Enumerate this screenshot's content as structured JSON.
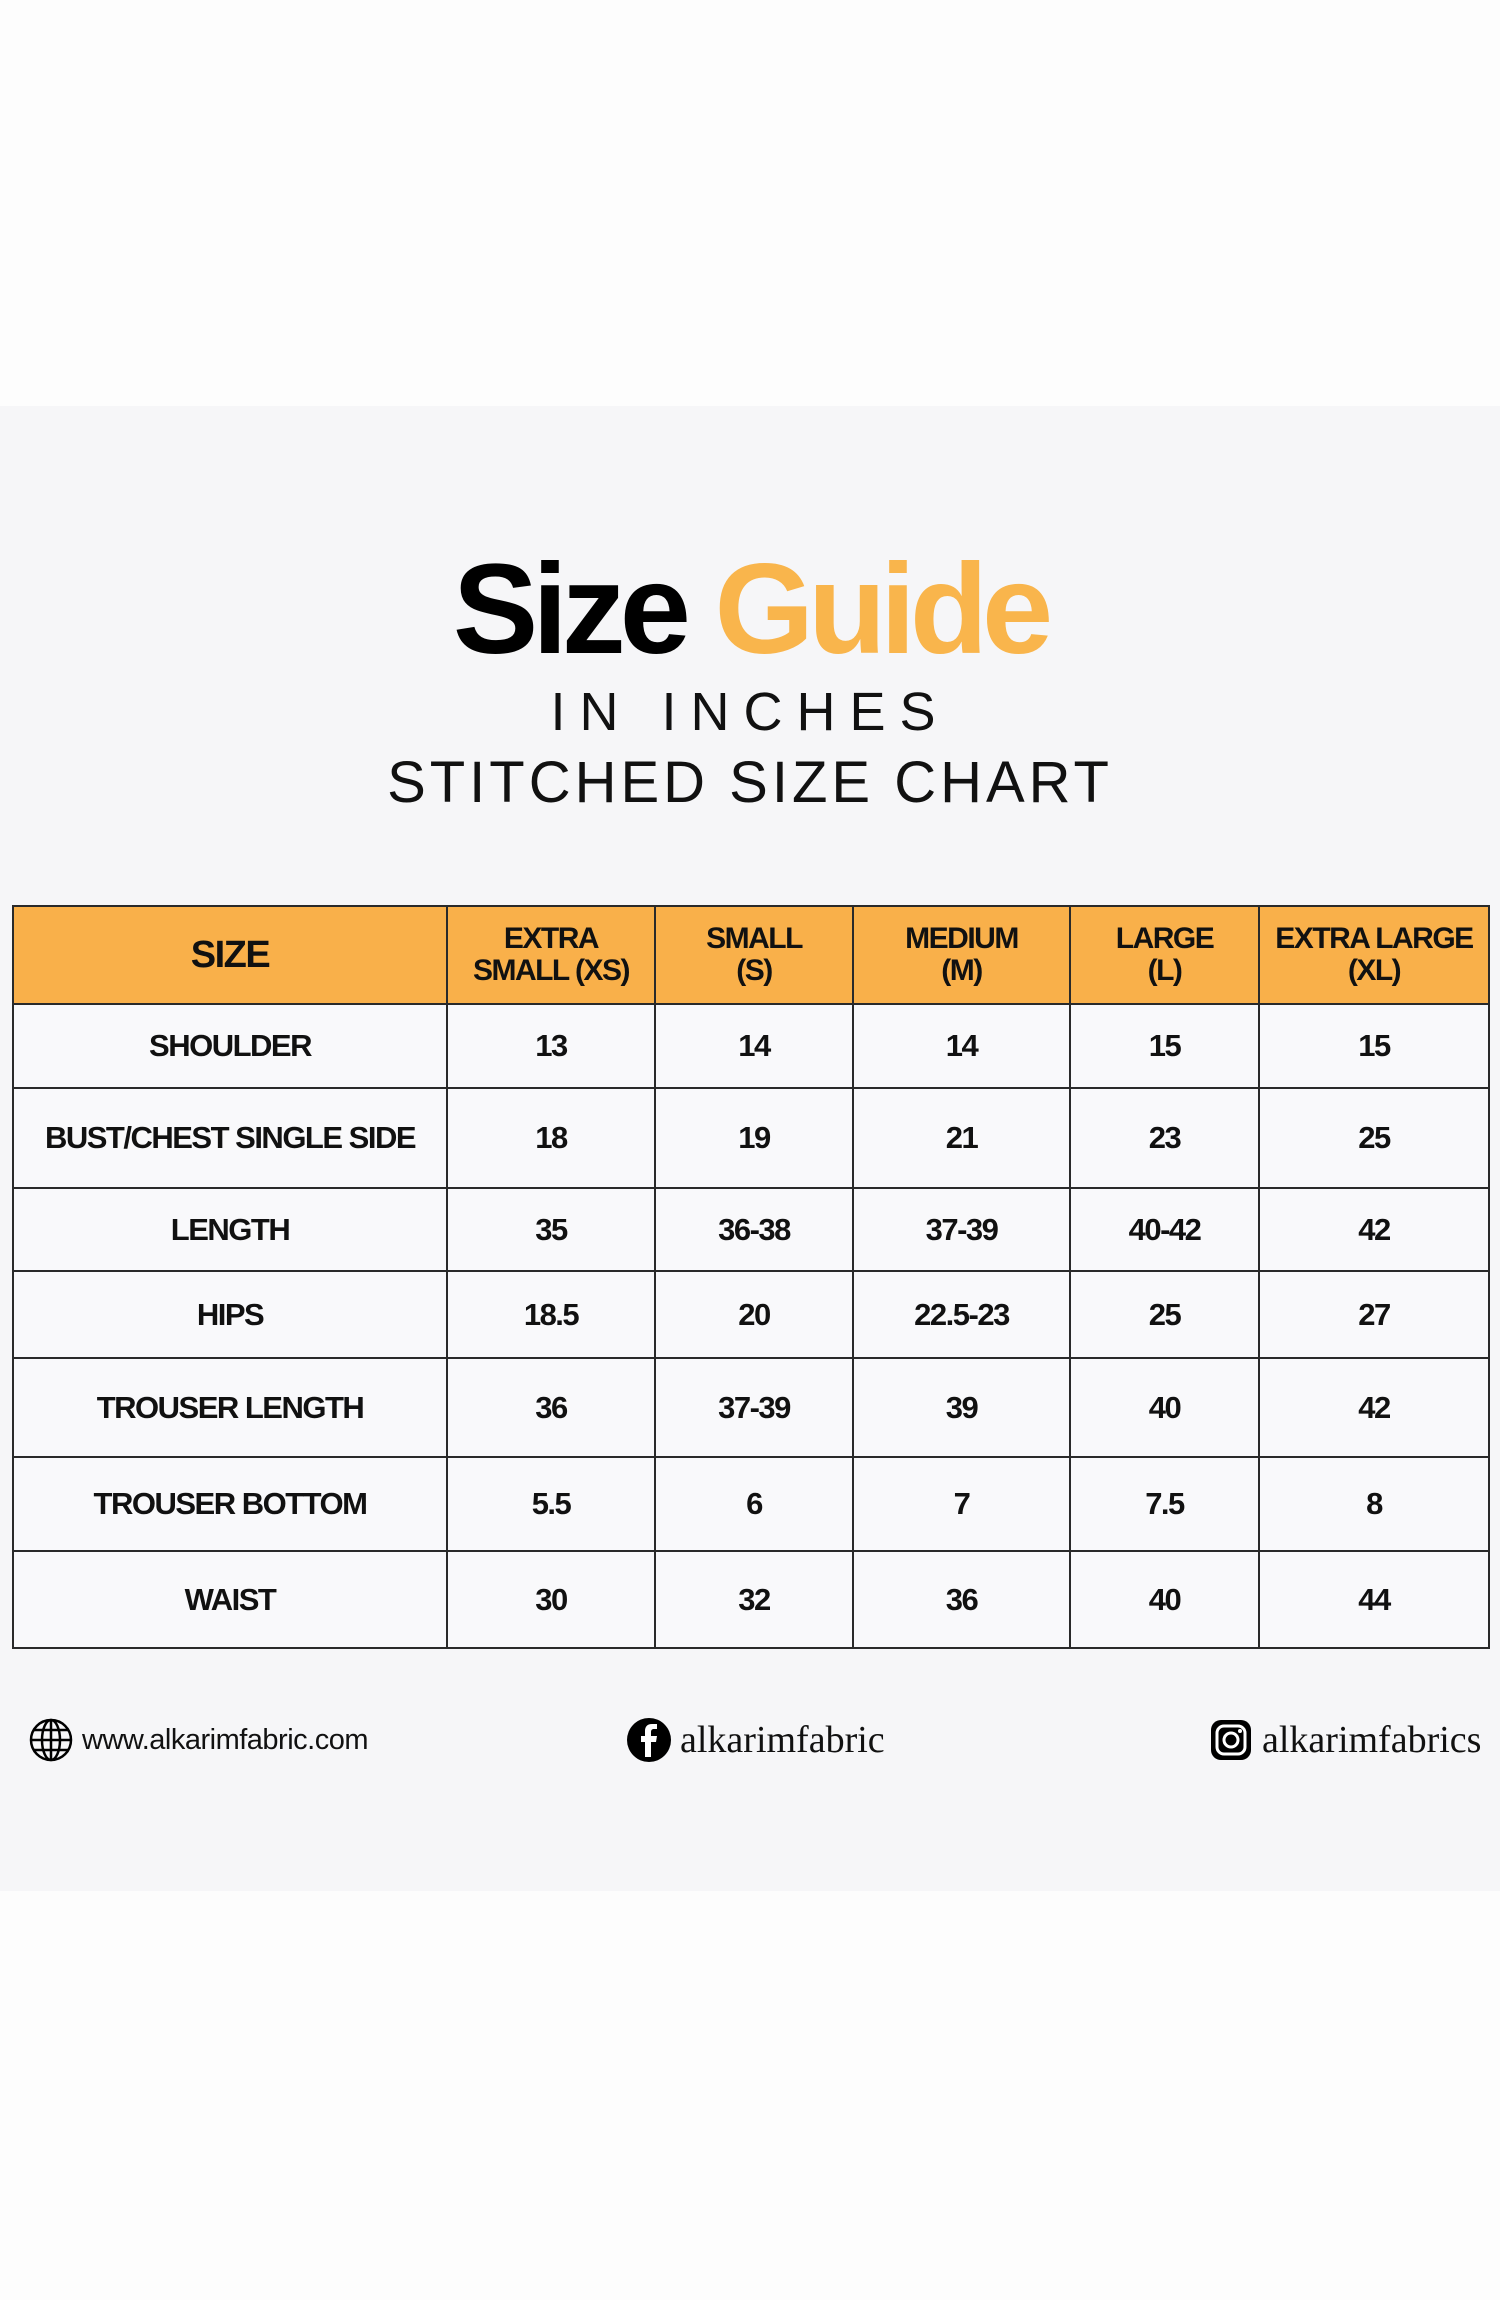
{
  "header": {
    "title_word1": "Size",
    "title_word2": "Guide",
    "subtitle1": "IN INCHES",
    "subtitle2": "STITCHED SIZE CHART",
    "accent_color": "#f9b04a"
  },
  "table": {
    "columns": [
      "SIZE",
      "EXTRA SMALL (XS)",
      "SMALL (S)",
      "MEDIUM (M)",
      "LARGE (L)",
      "EXTRA LARGE (XL)"
    ],
    "column_lines": [
      [
        "SIZE"
      ],
      [
        "EXTRA",
        "SMALL (XS)"
      ],
      [
        "SMALL",
        "(S)"
      ],
      [
        "MEDIUM",
        "(M)"
      ],
      [
        "LARGE",
        "(L)"
      ],
      [
        "EXTRA LARGE",
        "(XL)"
      ]
    ],
    "rows": [
      [
        "SHOULDER",
        "13",
        "14",
        "14",
        "15",
        "15"
      ],
      [
        "BUST/CHEST SINGLE SIDE",
        "18",
        "19",
        "21",
        "23",
        "25"
      ],
      [
        "LENGTH",
        "35",
        "36-38",
        "37-39",
        "40-42",
        "42"
      ],
      [
        "HIPS",
        "18.5",
        "20",
        "22.5-23",
        "25",
        "27"
      ],
      [
        "TROUSER LENGTH",
        "36",
        "37-39",
        "39",
        "40",
        "42"
      ],
      [
        "TROUSER BOTTOM",
        "5.5",
        "6",
        "7",
        "7.5",
        "8"
      ],
      [
        "WAIST",
        "30",
        "32",
        "36",
        "40",
        "44"
      ]
    ]
  },
  "footer": {
    "website": {
      "icon": "globe-icon",
      "text": "www.alkarimfabric.com"
    },
    "facebook": {
      "icon": "facebook-icon",
      "text": "alkarimfabric"
    },
    "instagram": {
      "icon": "instagram-icon",
      "text": "alkarimfabrics"
    }
  }
}
